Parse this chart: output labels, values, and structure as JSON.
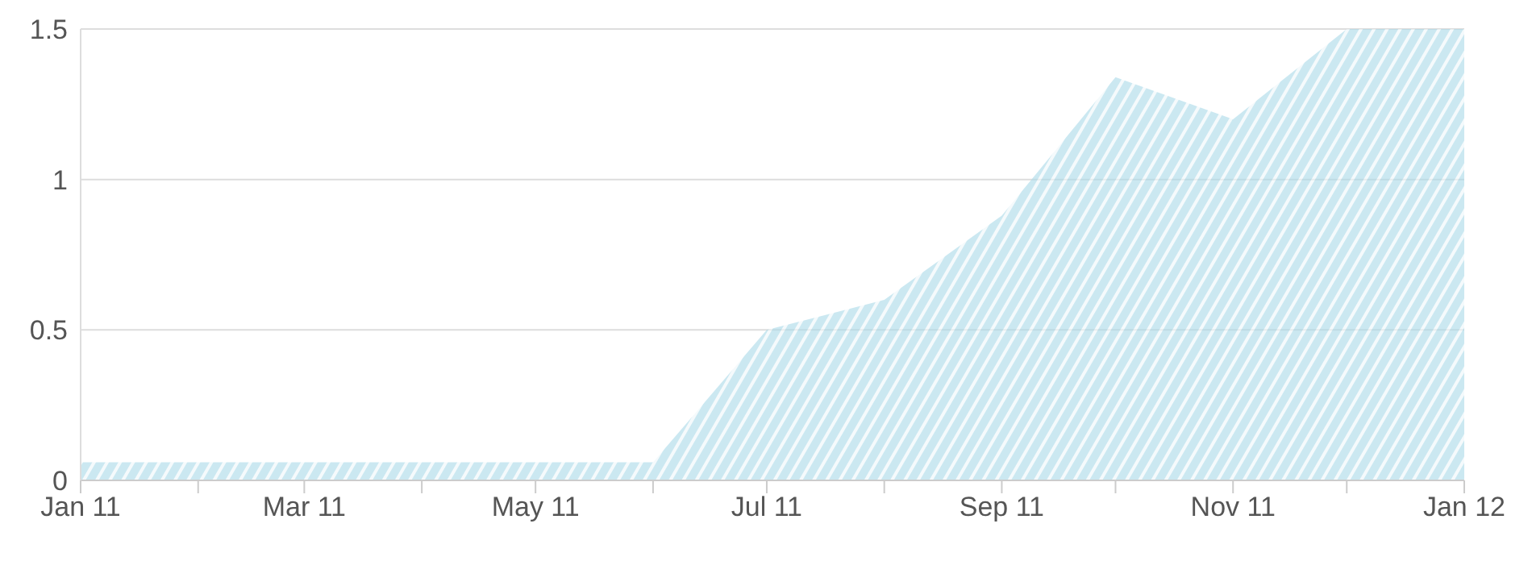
{
  "chart_data": {
    "type": "area",
    "x": [
      "2011-01",
      "2011-02",
      "2011-03",
      "2011-04",
      "2011-05",
      "2011-06",
      "2011-07",
      "2011-08",
      "2011-09",
      "2011-10",
      "2011-11",
      "2011-12",
      "2012-01"
    ],
    "series": [
      {
        "color": "#a9d9e8",
        "values": [
          0.06,
          0.06,
          0.06,
          0.06,
          0.06,
          0.06,
          0.5,
          0.6,
          0.88,
          1.34,
          1.2,
          1.5,
          1.5
        ]
      }
    ],
    "xlim": [
      "2011-01",
      "2012-01"
    ],
    "xticks": [
      {
        "value": "2011-01",
        "label": "Jan 11"
      },
      {
        "value": "2011-02",
        "label": null
      },
      {
        "value": "2011-03",
        "label": "Mar 11"
      },
      {
        "value": "2011-04",
        "label": null
      },
      {
        "value": "2011-05",
        "label": "May 11"
      },
      {
        "value": "2011-06",
        "label": null
      },
      {
        "value": "2011-07",
        "label": "Jul 11"
      },
      {
        "value": "2011-08",
        "label": null
      },
      {
        "value": "2011-09",
        "label": "Sep 11"
      },
      {
        "value": "2011-10",
        "label": null
      },
      {
        "value": "2011-11",
        "label": "Nov 11"
      },
      {
        "value": "2011-12",
        "label": null
      },
      {
        "value": "2012-01",
        "label": "Jan 12"
      }
    ],
    "ylim": [
      0,
      1.5
    ],
    "yticks": [
      0,
      0.5,
      1,
      1.5
    ],
    "grid": "y"
  }
}
